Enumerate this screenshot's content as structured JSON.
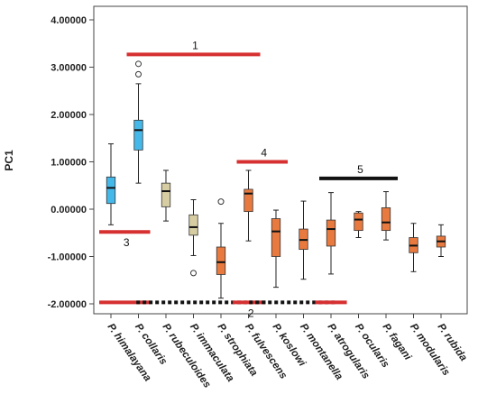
{
  "chart_data": {
    "type": "box",
    "ylabel": "PC1",
    "ylim": [
      -2.3,
      4.2
    ],
    "yticks": [
      4,
      3,
      2,
      1,
      0,
      -1,
      -2
    ],
    "ytick_labels": [
      "4.00000",
      "3.00000",
      "2.00000",
      "1.00000",
      "0.00000",
      "-1.00000",
      "-2.00000"
    ],
    "categories": [
      "P. himalayana",
      "P. collaris",
      "P. rubeculoides",
      "P. immaculata",
      "P. strophiata",
      "P. fulvescens",
      "P. koslowi",
      "P. montanella",
      "P. atrogularis",
      "P. ocularis",
      "P. fagani",
      "P. modularis",
      "P. rubida"
    ],
    "boxes": [
      {
        "whisker_low": -0.33,
        "q1": 0.12,
        "median": 0.45,
        "q3": 0.68,
        "whisker_high": 1.38,
        "outliers": [],
        "color": "#45b8ea"
      },
      {
        "whisker_low": 0.55,
        "q1": 1.25,
        "median": 1.67,
        "q3": 1.88,
        "whisker_high": 2.65,
        "outliers": [
          2.85,
          3.07
        ],
        "color": "#45b8ea"
      },
      {
        "whisker_low": -0.25,
        "q1": 0.05,
        "median": 0.38,
        "q3": 0.55,
        "whisker_high": 0.82,
        "outliers": [],
        "color": "#d7cda2"
      },
      {
        "whisker_low": -0.98,
        "q1": -0.55,
        "median": -0.38,
        "q3": -0.12,
        "whisker_high": 0.2,
        "outliers": [
          -1.35
        ],
        "color": "#d7cda2"
      },
      {
        "whisker_low": -1.88,
        "q1": -1.38,
        "median": -1.12,
        "q3": -0.8,
        "whisker_high": -0.3,
        "outliers": [
          0.16
        ],
        "color": "#e97a3f"
      },
      {
        "whisker_low": -0.67,
        "q1": -0.05,
        "median": 0.33,
        "q3": 0.42,
        "whisker_high": 0.82,
        "outliers": [],
        "color": "#e97a3f"
      },
      {
        "whisker_low": -1.65,
        "q1": -1.0,
        "median": -0.47,
        "q3": -0.2,
        "whisker_high": -0.02,
        "outliers": [],
        "color": "#e97a3f"
      },
      {
        "whisker_low": -1.48,
        "q1": -0.85,
        "median": -0.65,
        "q3": -0.42,
        "whisker_high": 0.17,
        "outliers": [],
        "color": "#e97a3f"
      },
      {
        "whisker_low": -1.37,
        "q1": -0.78,
        "median": -0.42,
        "q3": -0.23,
        "whisker_high": 0.35,
        "outliers": [],
        "color": "#e97a3f"
      },
      {
        "whisker_low": -0.6,
        "q1": -0.45,
        "median": -0.22,
        "q3": -0.08,
        "whisker_high": -0.05,
        "outliers": [],
        "color": "#e97a3f"
      },
      {
        "whisker_low": -0.65,
        "q1": -0.45,
        "median": -0.28,
        "q3": 0.03,
        "whisker_high": 0.37,
        "outliers": [],
        "color": "#e97a3f"
      },
      {
        "whisker_low": -1.32,
        "q1": -0.92,
        "median": -0.77,
        "q3": -0.6,
        "whisker_high": -0.3,
        "outliers": [],
        "color": "#e97a3f"
      },
      {
        "whisker_low": -1.0,
        "q1": -0.8,
        "median": -0.68,
        "q3": -0.57,
        "whisker_high": -0.33,
        "outliers": [],
        "color": "#e97a3f"
      }
    ],
    "annotations": [
      {
        "label": "1",
        "y": 3.27,
        "from": 1,
        "to": 5,
        "color": "#d63031",
        "style": "solid"
      },
      {
        "label": "4",
        "y": 1.0,
        "from": 5,
        "to": 6,
        "color": "#d63031",
        "style": "solid"
      },
      {
        "label": "5",
        "y": 0.65,
        "from": 8,
        "to": 10,
        "color": "#111111",
        "style": "solid"
      },
      {
        "label": "3",
        "y": -0.48,
        "from": 0,
        "to": 1,
        "color": "#d63031",
        "style": "solid"
      },
      {
        "label": "2",
        "y": -1.97,
        "segments": [
          {
            "from": 0,
            "to": 1,
            "color": "#d63031",
            "style": "solid"
          },
          {
            "from": 1.35,
            "to": 4.7,
            "color": "#111111",
            "style": "dotted"
          },
          {
            "from": 4.85,
            "to": 5.2,
            "color": "#d63031",
            "style": "solid"
          },
          {
            "from": 5.45,
            "to": 7.75,
            "color": "#111111",
            "style": "dotted"
          },
          {
            "from": 7.85,
            "to": 8.15,
            "color": "#d63031",
            "style": "solid"
          }
        ]
      }
    ],
    "grid": false,
    "legend": "none"
  }
}
